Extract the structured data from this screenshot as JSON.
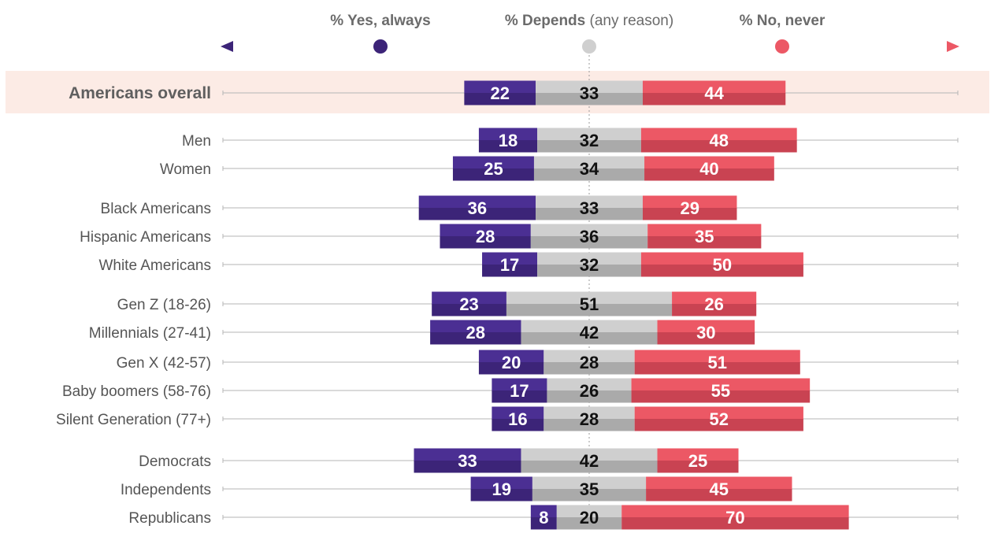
{
  "colors": {
    "yes": "#4b2f93",
    "yes_dark": "#3c2478",
    "depends": "#cfcfcf",
    "depends_dark": "#aaaaaa",
    "no": "#ec5865",
    "no_dark": "#c94352",
    "highlight_bg": "#fcebe5"
  },
  "legend": {
    "yes": {
      "bold": "% Yes, always",
      "normal": ""
    },
    "depends": {
      "bold": "% Depends",
      "normal": " (any reason)"
    },
    "no": {
      "bold": "% No, never",
      "normal": ""
    }
  },
  "chart_data": {
    "type": "bar",
    "orientation": "diverging-stacked-horizontal",
    "series_names": [
      "% Yes, always",
      "% Depends (any reason)",
      "% No, never"
    ],
    "categories": [
      "Americans overall",
      "Men",
      "Women",
      "Black Americans",
      "Hispanic Americans",
      "White Americans",
      "Gen Z (18-26)",
      "Millennials (27-41)",
      "Gen X (42-57)",
      "Baby boomers (58-76)",
      "Silent Generation (77+)",
      "Democrats",
      "Independents",
      "Republicans"
    ],
    "series": [
      {
        "name": "% Yes, always",
        "values": [
          22,
          18,
          25,
          36,
          28,
          17,
          23,
          28,
          20,
          17,
          16,
          33,
          19,
          8
        ]
      },
      {
        "name": "% Depends (any reason)",
        "values": [
          33,
          32,
          34,
          33,
          36,
          32,
          51,
          42,
          28,
          26,
          28,
          42,
          35,
          20
        ]
      },
      {
        "name": "% No, never",
        "values": [
          44,
          48,
          40,
          29,
          35,
          50,
          26,
          30,
          51,
          55,
          52,
          25,
          45,
          70
        ]
      }
    ],
    "highlighted_category": "Americans overall",
    "legend_placement": "top"
  }
}
